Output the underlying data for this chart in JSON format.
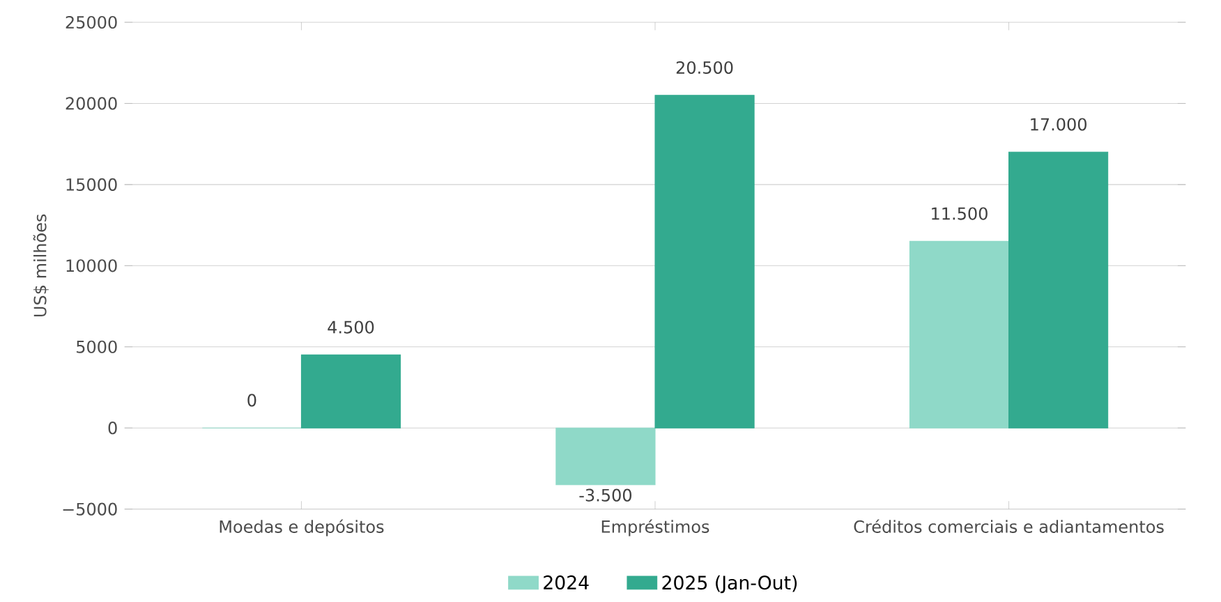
{
  "chart_data": {
    "type": "bar",
    "ylabel": "US$ milhões",
    "categories": [
      "Moedas e depósitos",
      "Empréstimos",
      "Créditos comerciais e adiantamentos"
    ],
    "series": [
      {
        "name": "2024",
        "color": "#8fd9c8",
        "values": [
          0,
          -3500,
          11500
        ],
        "value_labels": [
          "0",
          "-3.500",
          "11.500"
        ]
      },
      {
        "name": "2025 (Jan-Out)",
        "color": "#33aa8f",
        "values": [
          4500,
          20500,
          17000
        ],
        "value_labels": [
          "4.500",
          "20.500",
          "17.000"
        ]
      }
    ],
    "ylim": [
      -5000,
      25000
    ],
    "yticks": [
      {
        "value": -5000,
        "label": "−5000"
      },
      0,
      5000,
      10000,
      15000,
      20000,
      25000
    ],
    "grid": "y",
    "legend": "bottom"
  }
}
